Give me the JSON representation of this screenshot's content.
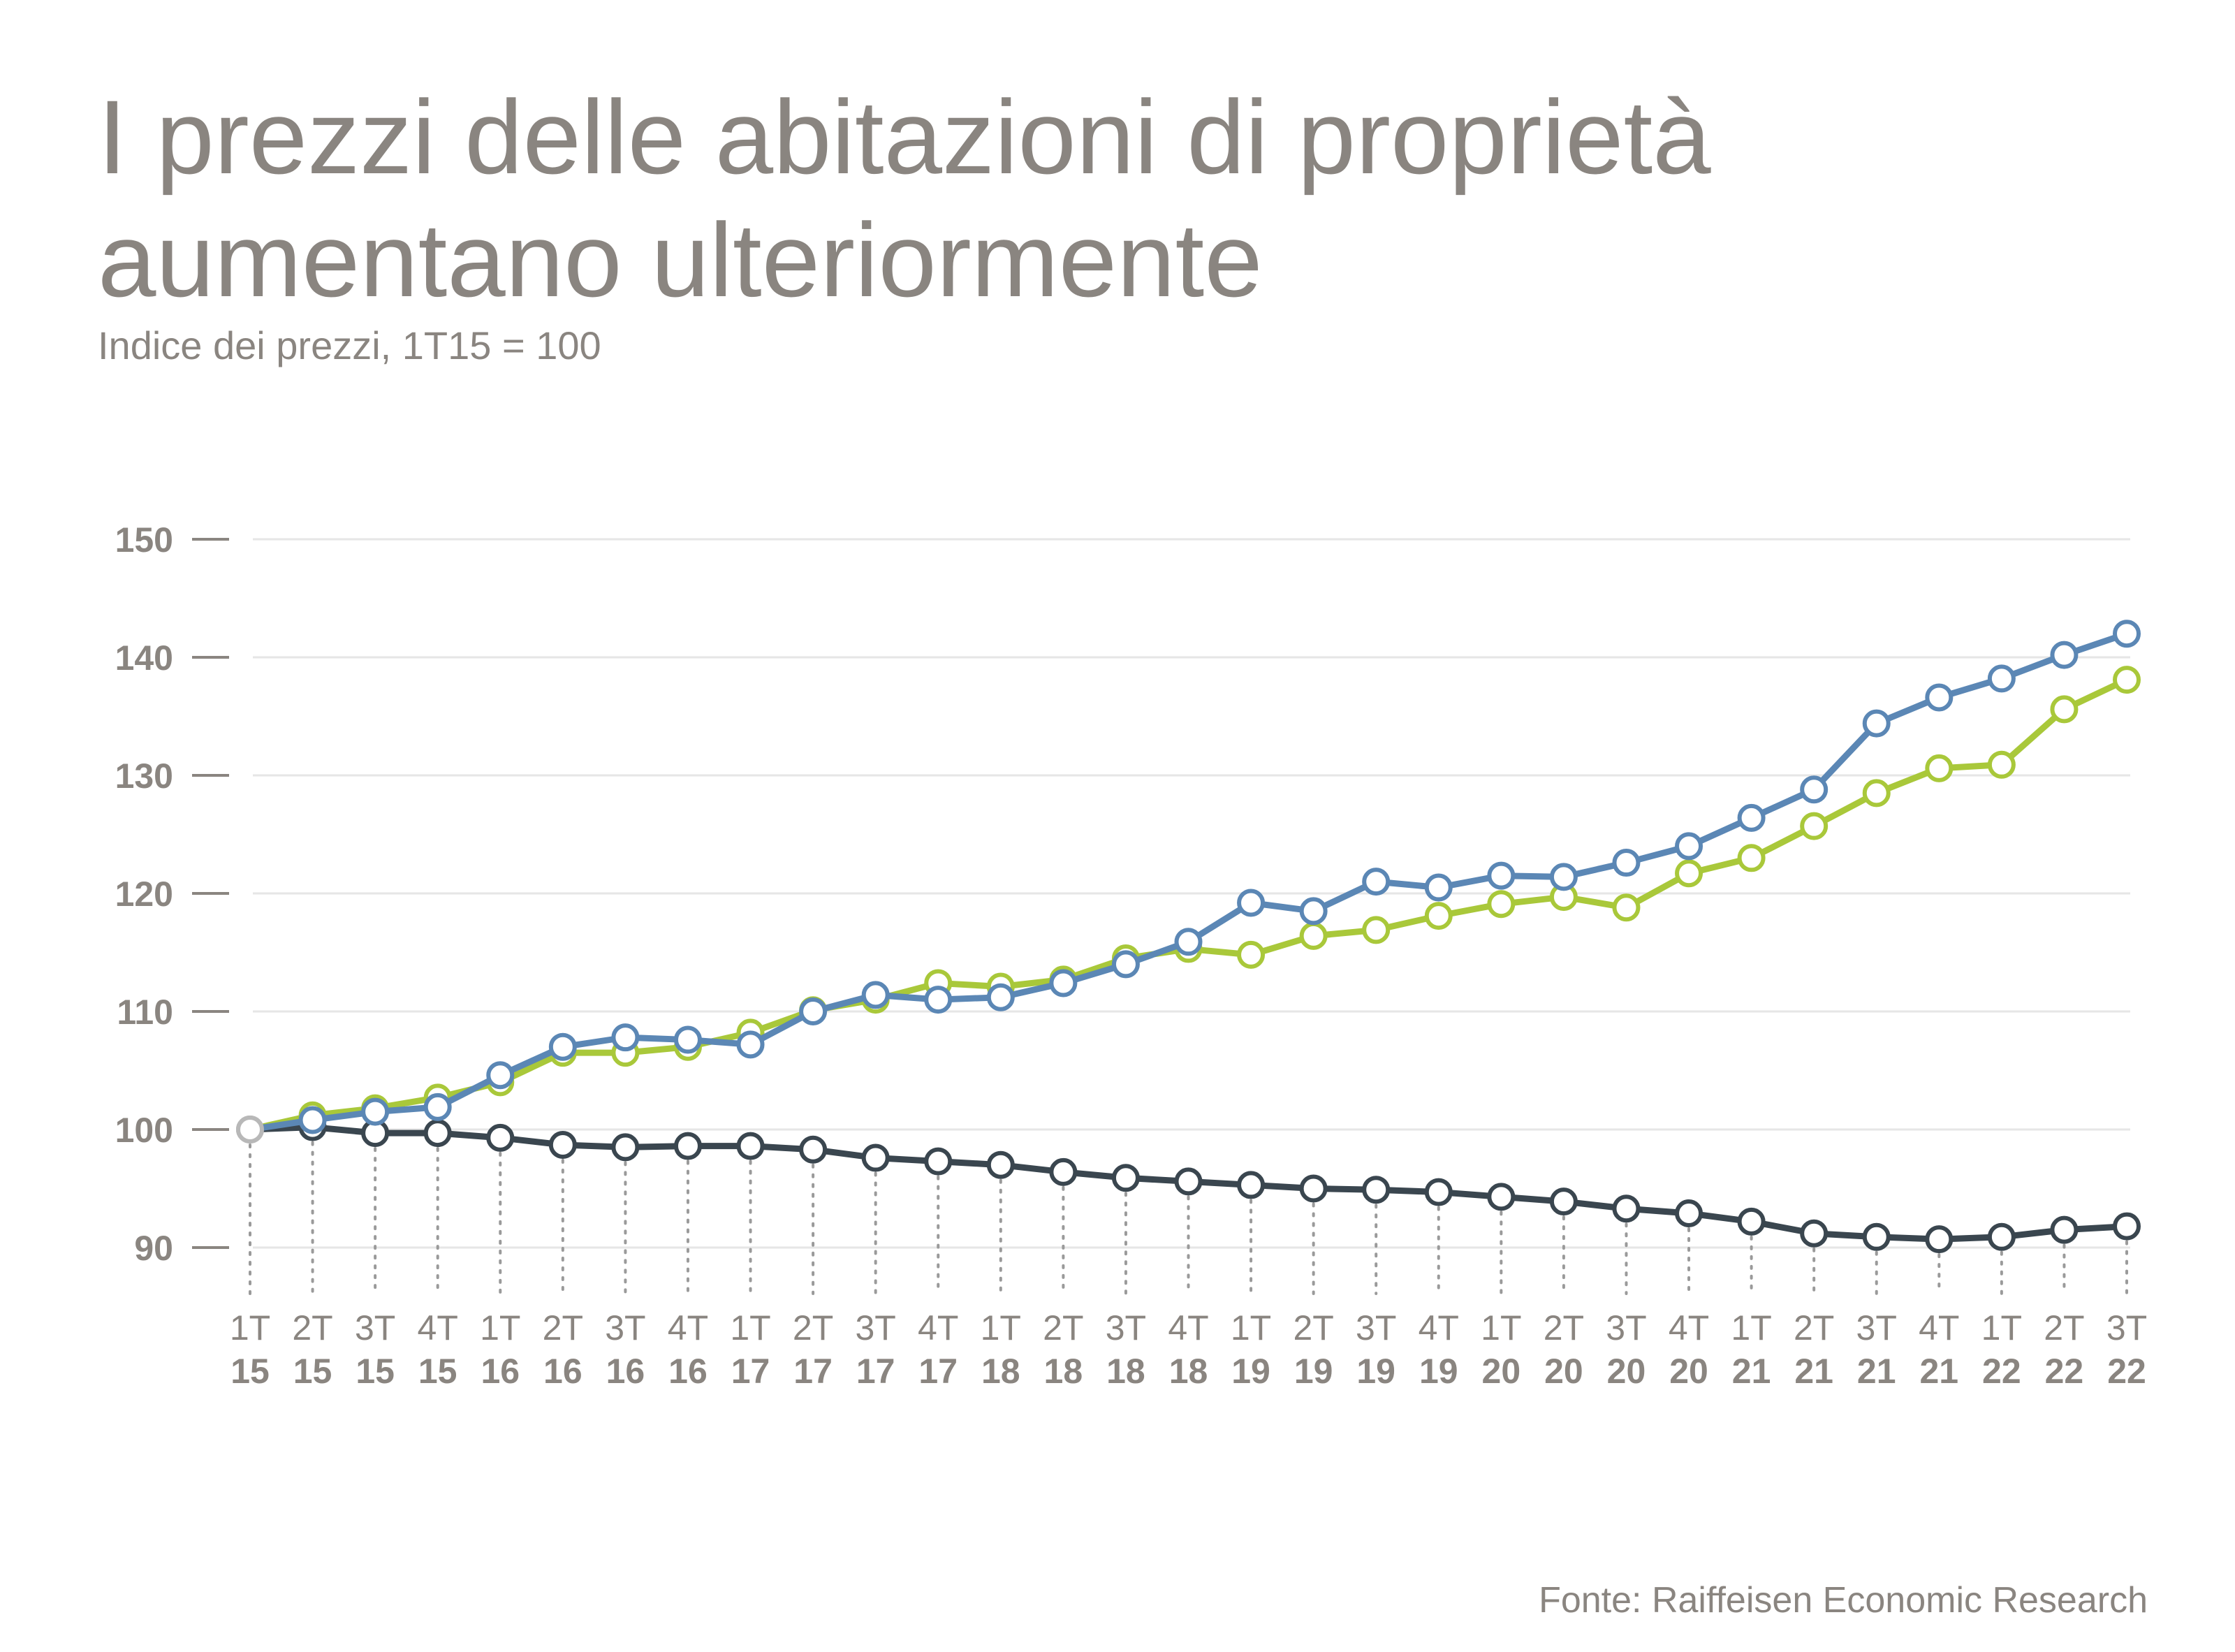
{
  "header": {
    "title_line1": "I prezzi delle abitazioni di proprietà",
    "title_line2": "aumentano ulteriormente",
    "subtitle": "Indice dei prezzi, 1T15 = 100"
  },
  "footer": {
    "source": "Fonte: Raiffeisen Economic Research"
  },
  "colors": {
    "blue": "#5b87b5",
    "green": "#a9c83a",
    "dark": "#3a464f",
    "grid": "#e6e6e6",
    "tick": "#8a8580",
    "dotline": "#9a9a9a",
    "start_marker": "#b8b8b8"
  },
  "chart_data": {
    "type": "line",
    "title": "I prezzi delle abitazioni di proprietà aumentano ulteriormente",
    "subtitle": "Indice dei prezzi, 1T15 = 100",
    "xlabel": "",
    "ylabel": "",
    "ylim": [
      88,
      150
    ],
    "yticks": [
      90,
      100,
      110,
      120,
      130,
      140,
      150
    ],
    "grid": true,
    "categories_quarter": [
      "1T",
      "2T",
      "3T",
      "4T",
      "1T",
      "2T",
      "3T",
      "4T",
      "1T",
      "2T",
      "3T",
      "4T",
      "1T",
      "2T",
      "3T",
      "4T",
      "1T",
      "2T",
      "3T",
      "4T",
      "1T",
      "2T",
      "3T",
      "4T",
      "1T",
      "2T",
      "3T",
      "4T",
      "1T",
      "2T",
      "3T"
    ],
    "categories_year": [
      "15",
      "15",
      "15",
      "15",
      "16",
      "16",
      "16",
      "16",
      "17",
      "17",
      "17",
      "17",
      "18",
      "18",
      "18",
      "18",
      "19",
      "19",
      "19",
      "19",
      "20",
      "20",
      "20",
      "20",
      "21",
      "21",
      "21",
      "21",
      "22",
      "22",
      "22"
    ],
    "series": [
      {
        "name": "blue",
        "color": "#5b87b5",
        "values": [
          100,
          100.8,
          101.5,
          101.9,
          104.6,
          107.0,
          107.8,
          107.6,
          107.2,
          110.0,
          111.4,
          111.0,
          111.2,
          112.4,
          114.0,
          115.9,
          119.2,
          118.5,
          121.0,
          120.5,
          121.5,
          121.4,
          122.6,
          124.0,
          126.4,
          128.8,
          134.4,
          136.6,
          138.2,
          140.2,
          142.0
        ]
      },
      {
        "name": "green",
        "color": "#a9c83a",
        "values": [
          100,
          101.2,
          101.8,
          102.7,
          104.0,
          106.5,
          106.5,
          107.0,
          108.2,
          110.1,
          111.0,
          112.4,
          112.1,
          112.7,
          114.5,
          115.3,
          114.8,
          116.4,
          116.9,
          118.1,
          119.1,
          119.7,
          118.8,
          121.7,
          123.0,
          125.7,
          128.5,
          130.6,
          130.9,
          135.6,
          138.1
        ]
      },
      {
        "name": "dark",
        "color": "#3a464f",
        "values": [
          100,
          100.2,
          99.7,
          99.7,
          99.3,
          98.7,
          98.5,
          98.6,
          98.6,
          98.3,
          97.6,
          97.3,
          97.0,
          96.4,
          95.9,
          95.6,
          95.3,
          95.0,
          94.9,
          94.7,
          94.3,
          93.9,
          93.3,
          92.9,
          92.2,
          91.2,
          90.9,
          90.7,
          90.9,
          91.5,
          91.8
        ]
      }
    ]
  }
}
